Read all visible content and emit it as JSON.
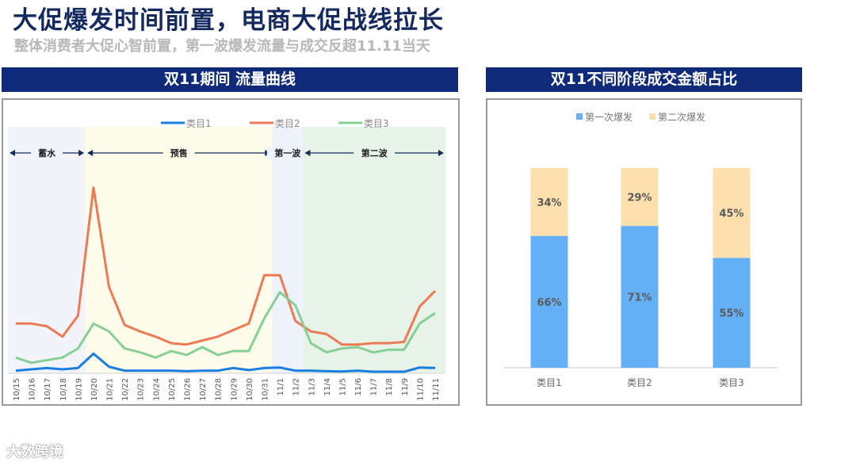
{
  "header": {
    "title": "大促爆发时间前置，电商大促战线拉长",
    "subtitle": "整体消费者大促心智前置，第一波爆发流量与成交反超11.11当天"
  },
  "logo": {
    "text": "大数跨境"
  },
  "chart_data": [
    {
      "type": "line",
      "title": "双11期间 流量曲线",
      "x": [
        "10/15",
        "10/16",
        "10/17",
        "10/18",
        "10/19",
        "10/20",
        "10/21",
        "10/22",
        "10/23",
        "10/24",
        "10/25",
        "10/26",
        "10/27",
        "10/28",
        "10/29",
        "10/30",
        "10/31",
        "11/1",
        "11/2",
        "11/3",
        "11/4",
        "11/5",
        "11/6",
        "11/7",
        "11/8",
        "11/9",
        "11/10",
        "11/11"
      ],
      "series": [
        {
          "name": "类目1",
          "color": "#1a7ee0",
          "values": [
            1,
            1.5,
            2,
            1.5,
            2,
            7.5,
            2.5,
            1,
            1,
            1,
            1,
            0.8,
            1,
            1,
            2,
            1.2,
            2,
            2.2,
            1,
            1,
            0.8,
            0.7,
            1,
            0.6,
            0.6,
            0.6,
            2.2,
            2
          ]
        },
        {
          "name": "类目2",
          "color": "#ec7a55",
          "values": [
            19,
            19,
            18,
            14,
            22,
            71,
            33,
            18.5,
            16,
            14,
            11.5,
            11,
            12.5,
            14,
            16.5,
            19,
            37.5,
            37.5,
            20,
            16,
            15,
            11,
            11,
            11.5,
            11.5,
            12,
            25.5,
            31.5
          ]
        },
        {
          "name": "类目3",
          "color": "#86cf96",
          "values": [
            6,
            4,
            5,
            6,
            9.5,
            19,
            16,
            9.5,
            8,
            6,
            8.5,
            7,
            10,
            7,
            8.5,
            8.5,
            21,
            31,
            26,
            11.5,
            8,
            9.5,
            10,
            8,
            9,
            9,
            19,
            23
          ]
        }
      ],
      "phases": [
        {
          "label": "蓄水",
          "from": "10/15",
          "to": "10/19",
          "color": "#f2f4fa"
        },
        {
          "label": "预售",
          "from": "10/20",
          "to": "10/31",
          "color": "#fdfbe9"
        },
        {
          "label": "第一波",
          "from": "11/1",
          "to": "11/2",
          "color": "#eef3fb"
        },
        {
          "label": "第二波",
          "from": "11/3",
          "to": "11/11",
          "color": "#e7f3e7"
        }
      ],
      "legend": "top",
      "grid": false
    },
    {
      "type": "bar",
      "stacked": true,
      "title": "双11不同阶段成交金额占比",
      "categories": [
        "类目1",
        "类目2",
        "类目3"
      ],
      "series": [
        {
          "name": "第一次爆发",
          "color": "#64b0f7",
          "values": [
            66,
            71,
            55
          ]
        },
        {
          "name": "第二次爆发",
          "color": "#fde0ad",
          "values": [
            34,
            29,
            45
          ]
        }
      ],
      "data_labels": [
        [
          "66%",
          "71%",
          "55%"
        ],
        [
          "34%",
          "29%",
          "45%"
        ]
      ],
      "legend": "top",
      "ylim": [
        0,
        100
      ]
    }
  ]
}
